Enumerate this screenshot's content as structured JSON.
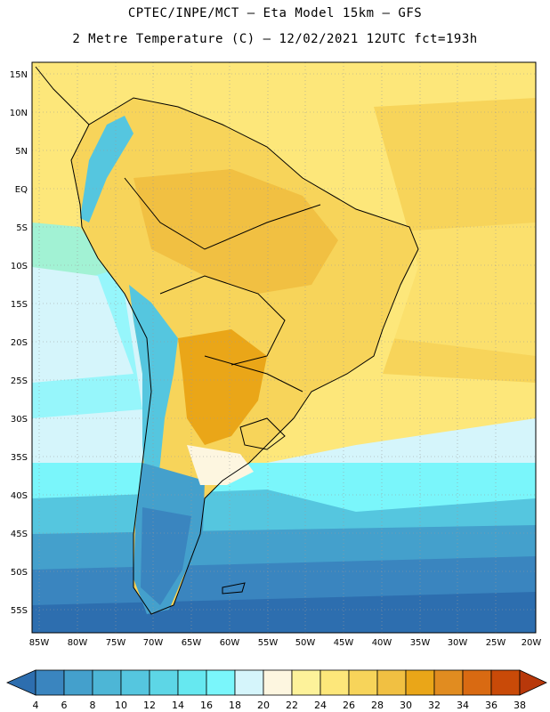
{
  "header": {
    "line1": "CPTEC/INPE/MCT —  Eta Model 15km — GFS",
    "line2": "2 Metre Temperature (C) — 12/02/2021 12UTC fct=193h"
  },
  "map": {
    "lat_labels": [
      "15N",
      "10N",
      "5N",
      "EQ",
      "5S",
      "10S",
      "15S",
      "20S",
      "25S",
      "30S",
      "35S",
      "40S",
      "45S",
      "50S",
      "55S"
    ],
    "lon_labels": [
      "85W",
      "80W",
      "75W",
      "70W",
      "65W",
      "60W",
      "55W",
      "50W",
      "45W",
      "40W",
      "35W",
      "30W",
      "25W",
      "20W"
    ]
  },
  "colorbar": {
    "labels": [
      "4",
      "6",
      "8",
      "10",
      "12",
      "14",
      "16",
      "18",
      "20",
      "22",
      "24",
      "26",
      "28",
      "30",
      "32",
      "34",
      "36",
      "38"
    ],
    "colors": [
      "#2d6eaf",
      "#3a85bf",
      "#44a0cc",
      "#4db6d6",
      "#55c6df",
      "#5dd6e6",
      "#66e8f0",
      "#7af6fb",
      "#d5f5fb",
      "#fdf6e0",
      "#fdf29a",
      "#fde77a",
      "#f7d45a",
      "#f1c042",
      "#eaa618",
      "#e18c20",
      "#d96a12",
      "#c94a08",
      "#b8380a"
    ]
  }
}
